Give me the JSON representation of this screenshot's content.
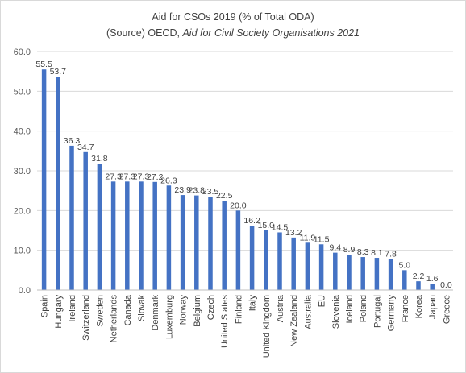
{
  "chart_data": {
    "type": "bar",
    "title": "Aid for CSOs 2019 (% of Total ODA)",
    "subtitle_prefix": "(Source) OECD,",
    "subtitle_source": "Aid for Civil Society Organisations 2021",
    "xlabel": "",
    "ylabel": "",
    "ylim": [
      0,
      60
    ],
    "yticks": [
      "0.0",
      "10.0",
      "20.0",
      "30.0",
      "40.0",
      "50.0",
      "60.0"
    ],
    "grid": true,
    "legend": "none",
    "bar_color": "#4472c4",
    "categories": [
      "Spain",
      "Hungary",
      "Ireland",
      "Switzerland",
      "Sweden",
      "Netherlands",
      "Canada",
      "Slovak",
      "Denmark",
      "Luxemburg",
      "Norway",
      "Belgium",
      "Czech",
      "United States",
      "Finland",
      "Italy",
      "United Kingdom",
      "Austria",
      "New Zealand",
      "Australia",
      "EU",
      "Slovenia",
      "Iceland",
      "Poland",
      "Portugal",
      "Germany",
      "France",
      "Korea",
      "Japan",
      "Greece"
    ],
    "values": [
      55.5,
      53.7,
      36.3,
      34.7,
      31.8,
      27.3,
      27.3,
      27.3,
      27.2,
      26.3,
      23.9,
      23.8,
      23.5,
      22.5,
      20.0,
      16.2,
      15.0,
      14.5,
      13.2,
      11.9,
      11.5,
      9.4,
      8.9,
      8.3,
      8.1,
      7.8,
      5.0,
      2.2,
      1.6,
      0.0
    ],
    "data_labels": [
      "55.5",
      "53.7",
      "36.3",
      "34.7",
      "31.8",
      "27.3",
      "27.3",
      "27.3",
      "27.2",
      "26.3",
      "23.9",
      "23.8",
      "23.5",
      "22.5",
      "20.0",
      "16.2",
      "15.0",
      "14.5",
      "13.2",
      "11.9",
      "11.5",
      "9.4",
      "8.9",
      "8.3",
      "8.1",
      "7.8",
      "5.0",
      "2.2",
      "1.6",
      "0.0"
    ]
  }
}
